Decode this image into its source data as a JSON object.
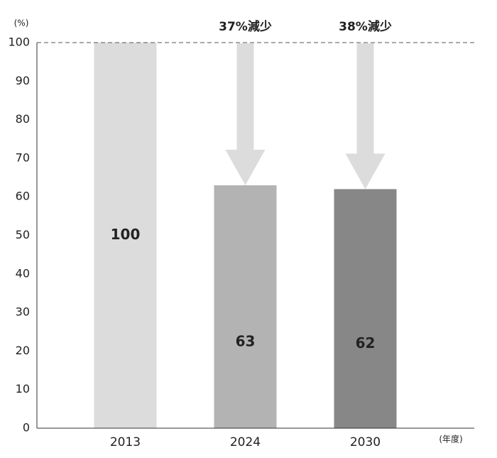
{
  "chart_data": {
    "type": "bar",
    "y_unit": "(%)",
    "x_unit": "(年度)",
    "categories": [
      "2013",
      "2024",
      "2030"
    ],
    "values": [
      100,
      63,
      62
    ],
    "colors": [
      "#dcdcdc",
      "#b3b3b3",
      "#878787"
    ],
    "ylim": [
      0,
      100
    ],
    "yticks": [
      0,
      10,
      20,
      30,
      40,
      50,
      60,
      70,
      80,
      90,
      100
    ],
    "annotations": [
      "37%減少",
      "38%減少"
    ]
  }
}
